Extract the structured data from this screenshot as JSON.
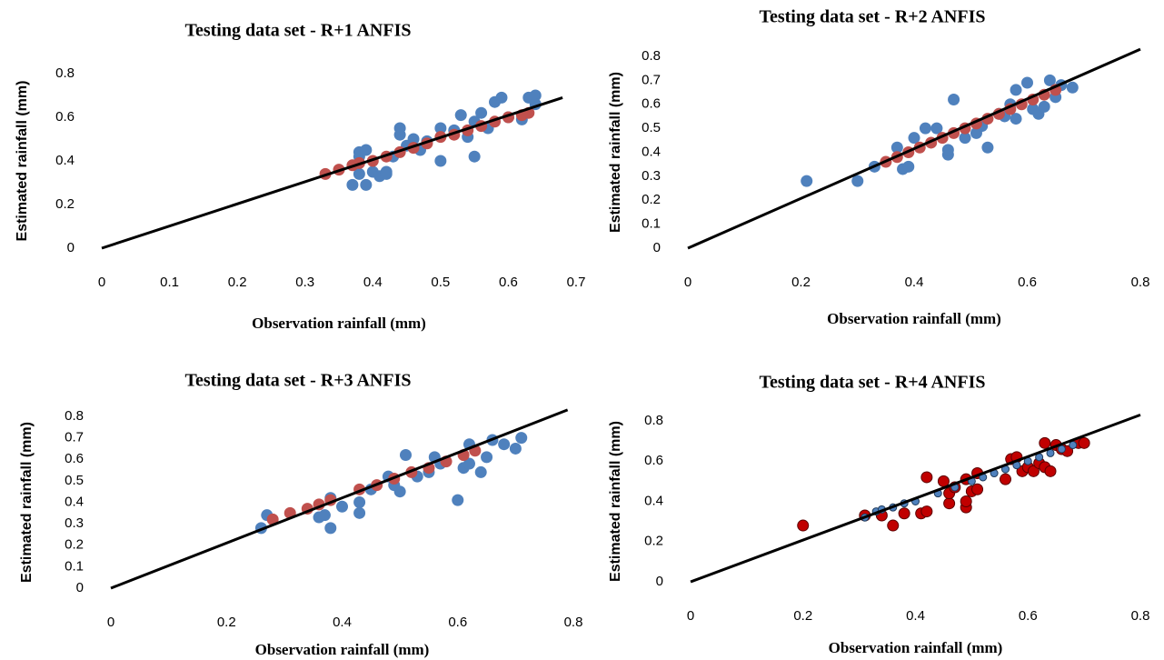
{
  "chart_data": [
    {
      "type": "scatter",
      "title": "Testing data set - R+1 ANFIS",
      "xlabel": "Observation rainfall (mm)",
      "ylabel": "Estimated rainfall (mm)",
      "xlim": [
        0,
        0.7
      ],
      "ylim": [
        0,
        0.8
      ],
      "xticks": [
        0,
        0.1,
        0.2,
        0.3,
        0.4,
        0.5,
        0.6,
        0.7
      ],
      "yticks": [
        0,
        0.2,
        0.4,
        0.6,
        0.8
      ],
      "series": [
        {
          "color": "#4f81bd",
          "x": [
            0.37,
            0.39,
            0.38,
            0.38,
            0.38,
            0.39,
            0.4,
            0.41,
            0.42,
            0.42,
            0.43,
            0.44,
            0.44,
            0.45,
            0.46,
            0.47,
            0.48,
            0.5,
            0.5,
            0.52,
            0.53,
            0.54,
            0.55,
            0.55,
            0.56,
            0.57,
            0.58,
            0.59,
            0.6,
            0.62,
            0.63,
            0.64,
            0.64
          ],
          "values": [
            0.29,
            0.29,
            0.34,
            0.42,
            0.44,
            0.45,
            0.35,
            0.33,
            0.35,
            0.34,
            0.42,
            0.52,
            0.55,
            0.47,
            0.5,
            0.45,
            0.49,
            0.4,
            0.55,
            0.54,
            0.61,
            0.51,
            0.42,
            0.58,
            0.62,
            0.55,
            0.67,
            0.69,
            0.6,
            0.59,
            0.69,
            0.7,
            0.66
          ]
        },
        {
          "color": "#c0504d",
          "x": [
            0.33,
            0.35,
            0.37,
            0.38,
            0.4,
            0.42,
            0.44,
            0.46,
            0.48,
            0.5,
            0.52,
            0.54,
            0.56,
            0.58,
            0.6,
            0.62,
            0.63
          ],
          "values": [
            0.34,
            0.36,
            0.38,
            0.39,
            0.4,
            0.42,
            0.44,
            0.46,
            0.48,
            0.51,
            0.52,
            0.54,
            0.56,
            0.58,
            0.6,
            0.61,
            0.62
          ]
        }
      ],
      "line": {
        "color": "#000000",
        "x": [
          0,
          0.68
        ],
        "values": [
          0,
          0.69
        ]
      }
    },
    {
      "type": "scatter",
      "title": "Testing data set - R+2 ANFIS",
      "xlabel": "Observation rainfall (mm)",
      "ylabel": "Estimated rainfall (mm)",
      "xlim": [
        0,
        0.8
      ],
      "ylim": [
        0,
        0.8
      ],
      "xticks": [
        0,
        0.2,
        0.4,
        0.6,
        0.8
      ],
      "yticks": [
        0,
        0.1,
        0.2,
        0.3,
        0.4,
        0.5,
        0.6,
        0.7,
        0.8
      ],
      "series": [
        {
          "color": "#4f81bd",
          "x": [
            0.21,
            0.3,
            0.33,
            0.37,
            0.38,
            0.39,
            0.4,
            0.42,
            0.44,
            0.46,
            0.46,
            0.47,
            0.49,
            0.51,
            0.52,
            0.53,
            0.55,
            0.56,
            0.57,
            0.58,
            0.58,
            0.6,
            0.61,
            0.62,
            0.63,
            0.64,
            0.65,
            0.66,
            0.68
          ],
          "values": [
            0.28,
            0.28,
            0.34,
            0.42,
            0.33,
            0.34,
            0.46,
            0.5,
            0.5,
            0.39,
            0.41,
            0.62,
            0.46,
            0.48,
            0.51,
            0.42,
            0.56,
            0.55,
            0.6,
            0.66,
            0.54,
            0.69,
            0.58,
            0.56,
            0.59,
            0.7,
            0.63,
            0.68,
            0.67
          ]
        },
        {
          "color": "#c0504d",
          "x": [
            0.35,
            0.37,
            0.39,
            0.41,
            0.43,
            0.45,
            0.47,
            0.49,
            0.51,
            0.53,
            0.55,
            0.57,
            0.59,
            0.61,
            0.63,
            0.65
          ],
          "values": [
            0.36,
            0.38,
            0.4,
            0.42,
            0.44,
            0.46,
            0.48,
            0.5,
            0.52,
            0.54,
            0.56,
            0.58,
            0.6,
            0.62,
            0.64,
            0.66
          ]
        }
      ],
      "line": {
        "color": "#000000",
        "x": [
          0,
          0.8
        ],
        "values": [
          0,
          0.83
        ]
      }
    },
    {
      "type": "scatter",
      "title": "Testing data set - R+3 ANFIS",
      "xlabel": "Observation rainfall (mm)",
      "ylabel": "Estimated rainfall (mm)",
      "xlim": [
        0,
        0.8
      ],
      "ylim": [
        0,
        0.8
      ],
      "xticks": [
        0,
        0.2,
        0.4,
        0.6,
        0.8
      ],
      "yticks": [
        0,
        0.1,
        0.2,
        0.3,
        0.4,
        0.5,
        0.6,
        0.7,
        0.8
      ],
      "series": [
        {
          "color": "#4f81bd",
          "x": [
            0.26,
            0.27,
            0.36,
            0.37,
            0.38,
            0.38,
            0.4,
            0.43,
            0.43,
            0.45,
            0.48,
            0.49,
            0.5,
            0.51,
            0.53,
            0.55,
            0.56,
            0.57,
            0.6,
            0.61,
            0.62,
            0.62,
            0.64,
            0.65,
            0.66,
            0.68,
            0.7,
            0.71
          ],
          "values": [
            0.28,
            0.34,
            0.33,
            0.34,
            0.28,
            0.42,
            0.38,
            0.35,
            0.4,
            0.46,
            0.52,
            0.48,
            0.45,
            0.62,
            0.52,
            0.54,
            0.61,
            0.58,
            0.41,
            0.56,
            0.67,
            0.58,
            0.54,
            0.61,
            0.69,
            0.67,
            0.65,
            0.7
          ]
        },
        {
          "color": "#c0504d",
          "x": [
            0.28,
            0.31,
            0.34,
            0.36,
            0.38,
            0.43,
            0.46,
            0.49,
            0.52,
            0.55,
            0.58,
            0.61,
            0.63
          ],
          "values": [
            0.32,
            0.35,
            0.37,
            0.39,
            0.41,
            0.46,
            0.48,
            0.51,
            0.54,
            0.56,
            0.59,
            0.62,
            0.64
          ]
        }
      ],
      "line": {
        "color": "#000000",
        "x": [
          0,
          0.79
        ],
        "values": [
          0,
          0.83
        ]
      }
    },
    {
      "type": "scatter",
      "title": "Testing data set - R+4 ANFIS",
      "xlabel": "Observation rainfall (mm)",
      "ylabel": "Estimated rainfall (mm)",
      "xlim": [
        0,
        0.8
      ],
      "ylim": [
        0,
        0.8
      ],
      "xticks": [
        0,
        0.2,
        0.4,
        0.6,
        0.8
      ],
      "yticks": [
        0,
        0.2,
        0.4,
        0.6,
        0.8
      ],
      "series": [
        {
          "color": "#c00000",
          "x": [
            0.2,
            0.31,
            0.34,
            0.36,
            0.38,
            0.41,
            0.42,
            0.42,
            0.45,
            0.46,
            0.46,
            0.47,
            0.49,
            0.49,
            0.49,
            0.5,
            0.51,
            0.51,
            0.56,
            0.57,
            0.58,
            0.59,
            0.6,
            0.61,
            0.62,
            0.63,
            0.63,
            0.64,
            0.65,
            0.66,
            0.67,
            0.69,
            0.7
          ],
          "values": [
            0.28,
            0.33,
            0.33,
            0.28,
            0.34,
            0.34,
            0.35,
            0.52,
            0.5,
            0.39,
            0.44,
            0.47,
            0.37,
            0.4,
            0.51,
            0.45,
            0.54,
            0.46,
            0.51,
            0.61,
            0.62,
            0.55,
            0.57,
            0.55,
            0.59,
            0.69,
            0.57,
            0.55,
            0.68,
            0.66,
            0.65,
            0.69,
            0.69
          ]
        },
        {
          "color": "#4f81bd",
          "x": [
            0.31,
            0.33,
            0.34,
            0.36,
            0.38,
            0.4,
            0.44,
            0.47,
            0.5,
            0.52,
            0.54,
            0.56,
            0.58,
            0.6,
            0.62,
            0.64,
            0.66,
            0.68
          ],
          "values": [
            0.32,
            0.35,
            0.36,
            0.37,
            0.39,
            0.4,
            0.44,
            0.47,
            0.5,
            0.52,
            0.54,
            0.56,
            0.58,
            0.6,
            0.62,
            0.64,
            0.66,
            0.68
          ]
        }
      ],
      "line": {
        "color": "#000000",
        "x": [
          0,
          0.8
        ],
        "values": [
          0,
          0.83
        ]
      }
    }
  ]
}
